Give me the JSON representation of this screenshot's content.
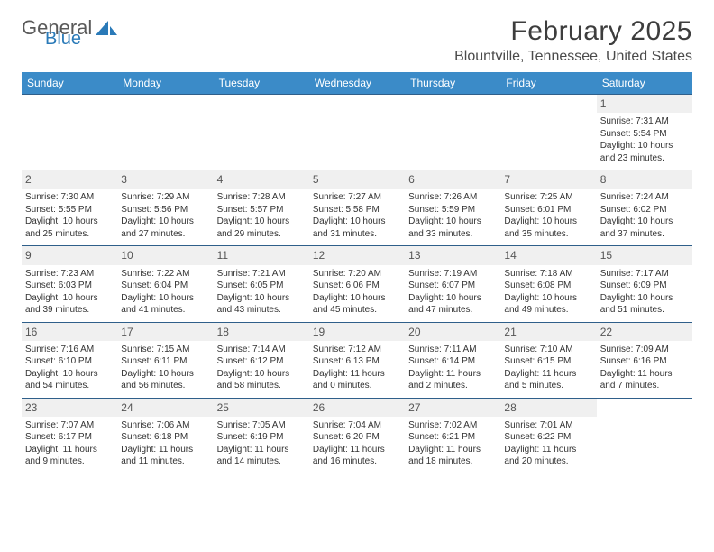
{
  "logo": {
    "word1": "General",
    "word2": "Blue"
  },
  "title": "February 2025",
  "location": "Blountville, Tennessee, United States",
  "header_bg": "#3b8bc8",
  "row_border": "#2f5f8a",
  "daynum_bg": "#f0f0f0",
  "weekdays": [
    "Sunday",
    "Monday",
    "Tuesday",
    "Wednesday",
    "Thursday",
    "Friday",
    "Saturday"
  ],
  "weeks": [
    [
      {
        "n": "",
        "lines": []
      },
      {
        "n": "",
        "lines": []
      },
      {
        "n": "",
        "lines": []
      },
      {
        "n": "",
        "lines": []
      },
      {
        "n": "",
        "lines": []
      },
      {
        "n": "",
        "lines": []
      },
      {
        "n": "1",
        "lines": [
          "Sunrise: 7:31 AM",
          "Sunset: 5:54 PM",
          "Daylight: 10 hours and 23 minutes."
        ]
      }
    ],
    [
      {
        "n": "2",
        "lines": [
          "Sunrise: 7:30 AM",
          "Sunset: 5:55 PM",
          "Daylight: 10 hours and 25 minutes."
        ]
      },
      {
        "n": "3",
        "lines": [
          "Sunrise: 7:29 AM",
          "Sunset: 5:56 PM",
          "Daylight: 10 hours and 27 minutes."
        ]
      },
      {
        "n": "4",
        "lines": [
          "Sunrise: 7:28 AM",
          "Sunset: 5:57 PM",
          "Daylight: 10 hours and 29 minutes."
        ]
      },
      {
        "n": "5",
        "lines": [
          "Sunrise: 7:27 AM",
          "Sunset: 5:58 PM",
          "Daylight: 10 hours and 31 minutes."
        ]
      },
      {
        "n": "6",
        "lines": [
          "Sunrise: 7:26 AM",
          "Sunset: 5:59 PM",
          "Daylight: 10 hours and 33 minutes."
        ]
      },
      {
        "n": "7",
        "lines": [
          "Sunrise: 7:25 AM",
          "Sunset: 6:01 PM",
          "Daylight: 10 hours and 35 minutes."
        ]
      },
      {
        "n": "8",
        "lines": [
          "Sunrise: 7:24 AM",
          "Sunset: 6:02 PM",
          "Daylight: 10 hours and 37 minutes."
        ]
      }
    ],
    [
      {
        "n": "9",
        "lines": [
          "Sunrise: 7:23 AM",
          "Sunset: 6:03 PM",
          "Daylight: 10 hours and 39 minutes."
        ]
      },
      {
        "n": "10",
        "lines": [
          "Sunrise: 7:22 AM",
          "Sunset: 6:04 PM",
          "Daylight: 10 hours and 41 minutes."
        ]
      },
      {
        "n": "11",
        "lines": [
          "Sunrise: 7:21 AM",
          "Sunset: 6:05 PM",
          "Daylight: 10 hours and 43 minutes."
        ]
      },
      {
        "n": "12",
        "lines": [
          "Sunrise: 7:20 AM",
          "Sunset: 6:06 PM",
          "Daylight: 10 hours and 45 minutes."
        ]
      },
      {
        "n": "13",
        "lines": [
          "Sunrise: 7:19 AM",
          "Sunset: 6:07 PM",
          "Daylight: 10 hours and 47 minutes."
        ]
      },
      {
        "n": "14",
        "lines": [
          "Sunrise: 7:18 AM",
          "Sunset: 6:08 PM",
          "Daylight: 10 hours and 49 minutes."
        ]
      },
      {
        "n": "15",
        "lines": [
          "Sunrise: 7:17 AM",
          "Sunset: 6:09 PM",
          "Daylight: 10 hours and 51 minutes."
        ]
      }
    ],
    [
      {
        "n": "16",
        "lines": [
          "Sunrise: 7:16 AM",
          "Sunset: 6:10 PM",
          "Daylight: 10 hours and 54 minutes."
        ]
      },
      {
        "n": "17",
        "lines": [
          "Sunrise: 7:15 AM",
          "Sunset: 6:11 PM",
          "Daylight: 10 hours and 56 minutes."
        ]
      },
      {
        "n": "18",
        "lines": [
          "Sunrise: 7:14 AM",
          "Sunset: 6:12 PM",
          "Daylight: 10 hours and 58 minutes."
        ]
      },
      {
        "n": "19",
        "lines": [
          "Sunrise: 7:12 AM",
          "Sunset: 6:13 PM",
          "Daylight: 11 hours and 0 minutes."
        ]
      },
      {
        "n": "20",
        "lines": [
          "Sunrise: 7:11 AM",
          "Sunset: 6:14 PM",
          "Daylight: 11 hours and 2 minutes."
        ]
      },
      {
        "n": "21",
        "lines": [
          "Sunrise: 7:10 AM",
          "Sunset: 6:15 PM",
          "Daylight: 11 hours and 5 minutes."
        ]
      },
      {
        "n": "22",
        "lines": [
          "Sunrise: 7:09 AM",
          "Sunset: 6:16 PM",
          "Daylight: 11 hours and 7 minutes."
        ]
      }
    ],
    [
      {
        "n": "23",
        "lines": [
          "Sunrise: 7:07 AM",
          "Sunset: 6:17 PM",
          "Daylight: 11 hours and 9 minutes."
        ]
      },
      {
        "n": "24",
        "lines": [
          "Sunrise: 7:06 AM",
          "Sunset: 6:18 PM",
          "Daylight: 11 hours and 11 minutes."
        ]
      },
      {
        "n": "25",
        "lines": [
          "Sunrise: 7:05 AM",
          "Sunset: 6:19 PM",
          "Daylight: 11 hours and 14 minutes."
        ]
      },
      {
        "n": "26",
        "lines": [
          "Sunrise: 7:04 AM",
          "Sunset: 6:20 PM",
          "Daylight: 11 hours and 16 minutes."
        ]
      },
      {
        "n": "27",
        "lines": [
          "Sunrise: 7:02 AM",
          "Sunset: 6:21 PM",
          "Daylight: 11 hours and 18 minutes."
        ]
      },
      {
        "n": "28",
        "lines": [
          "Sunrise: 7:01 AM",
          "Sunset: 6:22 PM",
          "Daylight: 11 hours and 20 minutes."
        ]
      },
      {
        "n": "",
        "lines": []
      }
    ]
  ]
}
